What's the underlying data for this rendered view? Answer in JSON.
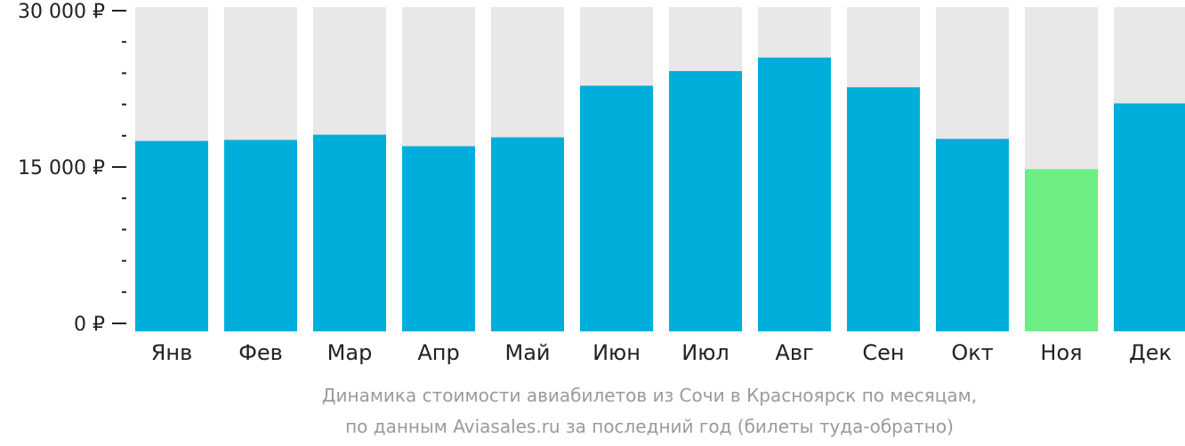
{
  "chart_data": {
    "type": "bar",
    "categories": [
      "Янв",
      "Фев",
      "Мар",
      "Апр",
      "Май",
      "Июн",
      "Июл",
      "Авг",
      "Сен",
      "Окт",
      "Ноя",
      "Дек"
    ],
    "values": [
      17500,
      17600,
      18100,
      17000,
      17850,
      22800,
      24200,
      25500,
      22650,
      17700,
      14800,
      21100
    ],
    "highlight_index": 10,
    "ylim": [
      0,
      30000
    ],
    "yticks": [
      {
        "value": 30000,
        "label": "30 000 ₽"
      },
      {
        "value": 15000,
        "label": "15 000 ₽"
      },
      {
        "value": 0,
        "label": "0 ₽"
      }
    ],
    "minor_tick_step": 3000,
    "grid": false,
    "colors": {
      "bar": "#00AEDB",
      "highlight": "#6CEE85",
      "background_bar": "#E8E8E8",
      "axis": "#222222"
    },
    "caption_line1": "Динамика стоимости авиабилетов из Сочи в Красноярск по месяцам,",
    "caption_line2": "по данным Aviasales.ru за последний год (билеты туда-обратно)"
  }
}
